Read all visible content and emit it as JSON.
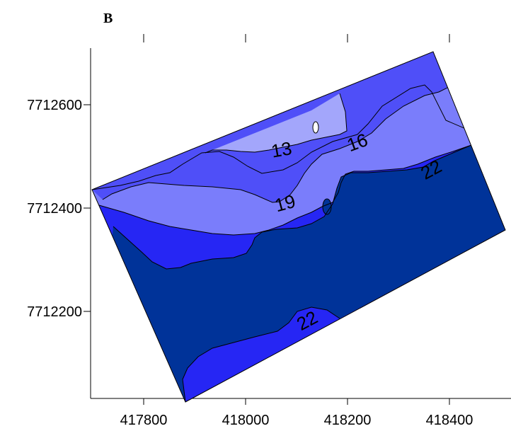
{
  "panel_label": "B",
  "x_ticks": [
    {
      "value": 417800,
      "label": "417800"
    },
    {
      "value": 418000,
      "label": "418000"
    },
    {
      "value": 418200,
      "label": "418200"
    },
    {
      "value": 418400,
      "label": "418400"
    }
  ],
  "y_ticks": [
    {
      "value": 7712600,
      "label": "7712600"
    },
    {
      "value": 7712400,
      "label": "7712400"
    },
    {
      "value": 7712200,
      "label": "7712200"
    }
  ],
  "contour_labels": [
    {
      "text": "13"
    },
    {
      "text": "16"
    },
    {
      "text": "19"
    },
    {
      "text": "22"
    },
    {
      "text": "22"
    }
  ],
  "colors": {
    "band_lightest": "#a3a6fb",
    "band_light": "#7a7dfb",
    "band_mid": "#4f4ff8",
    "band_bright": "#2626f4",
    "band_dark": "#003399",
    "hole": "#ffffff"
  }
}
